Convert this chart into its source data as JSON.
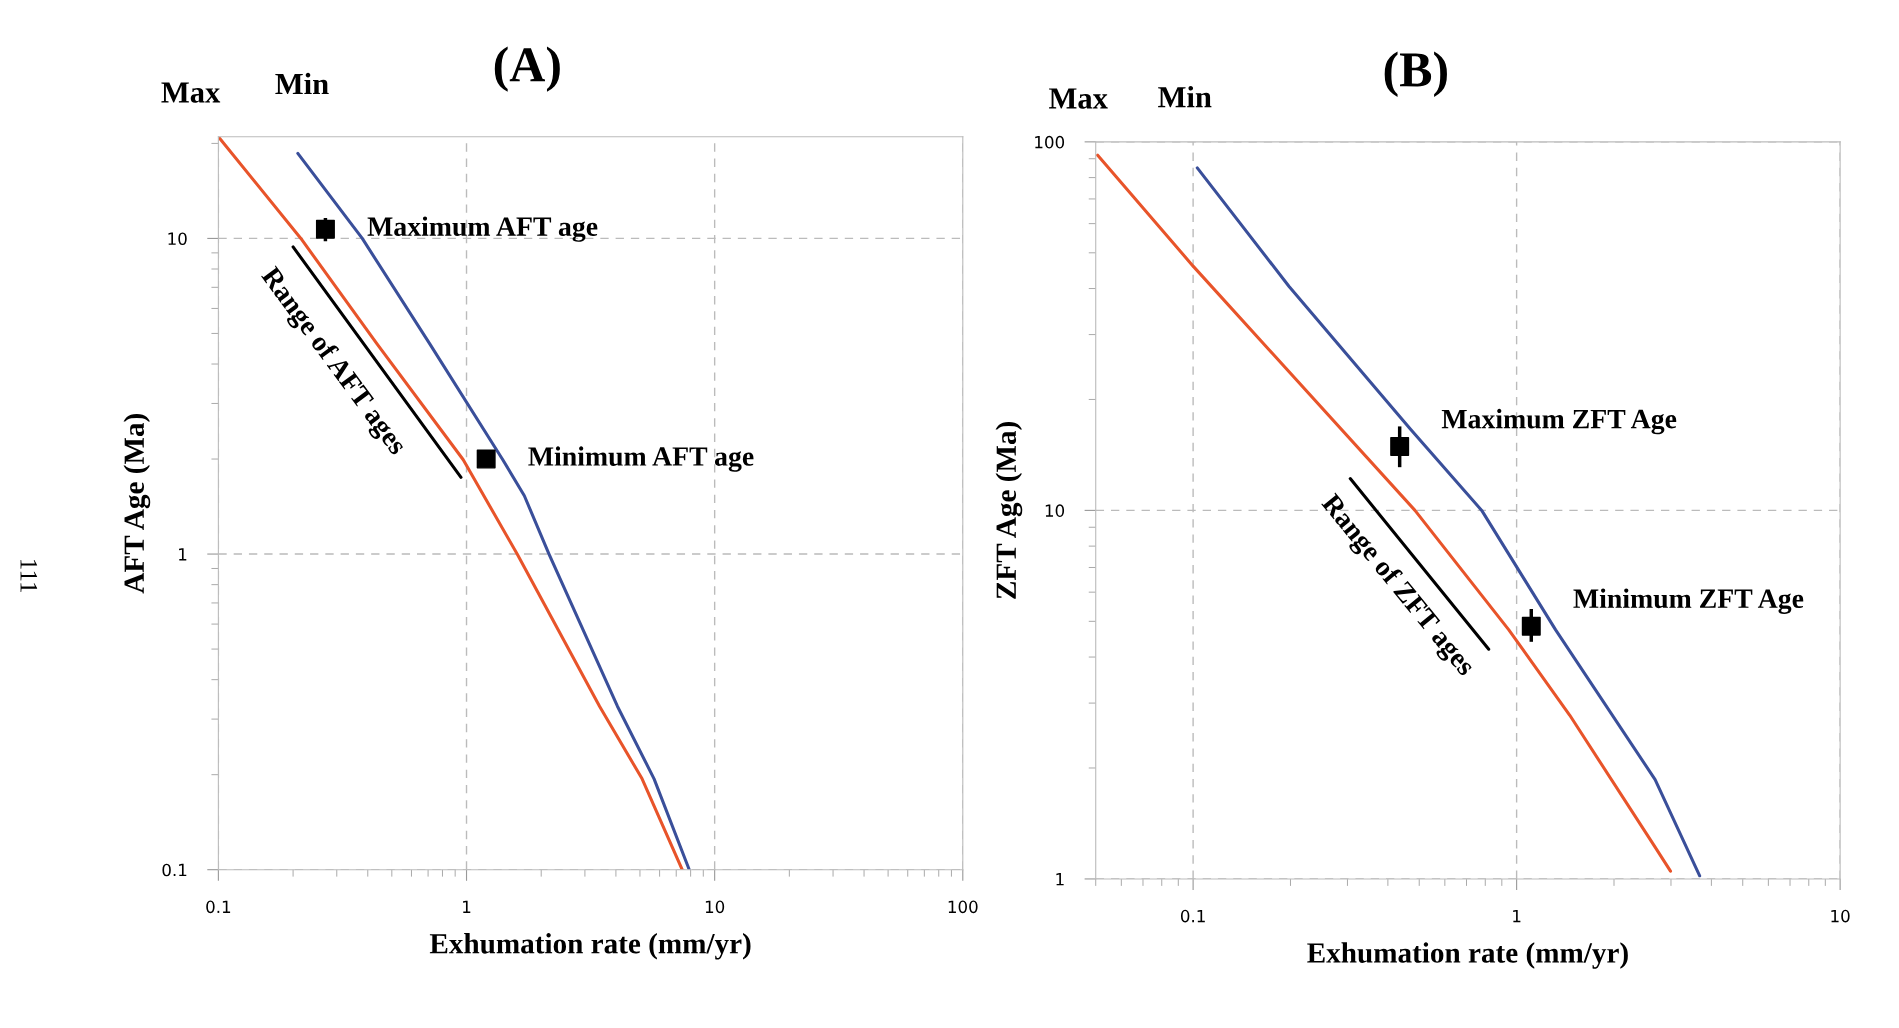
{
  "chart_data": [
    {
      "type": "line",
      "title": "(A)",
      "xlabel": "Exhumation rate (mm/yr)",
      "ylabel": "AFT Age (Ma)",
      "log": "xy",
      "grid": true,
      "xlim": [
        0.1,
        100
      ],
      "xticks": [
        0.1,
        1,
        10,
        100
      ],
      "ylim": [
        0.1,
        21
      ],
      "yticks": [
        0.1,
        1,
        10
      ],
      "series": [
        {
          "color": "#e8542a",
          "marker": "none",
          "line_style": "solid",
          "x": [
            0.1,
            0.215,
            0.435,
            0.97,
            1.6,
            3.44,
            5.1,
            7.4
          ],
          "values": [
            21,
            10,
            4.64,
            1.99,
            1,
            0.329,
            0.194,
            0.1
          ]
        },
        {
          "color": "#3a4f9a",
          "marker": "none",
          "line_style": "solid",
          "x": [
            0.209,
            0.38,
            0.71,
            1.4,
            1.71,
            2.15,
            4.06,
            5.7,
            7.9
          ],
          "values": [
            18.6,
            10,
            4.64,
            1.99,
            1.53,
            1,
            0.329,
            0.194,
            0.1
          ]
        },
        {
          "color": "#000000",
          "marker": "none",
          "line_style": "solid",
          "x": [
            0.2,
            0.95
          ],
          "values": [
            9.4,
            1.75
          ]
        },
        {
          "type": "scatter",
          "color": "#000000",
          "marker": "square",
          "x": [
            0.27,
            1.2
          ],
          "values": [
            10.7,
            2.0
          ],
          "errors": [
            [
              9.8,
              11.6
            ],
            null
          ]
        }
      ],
      "annotations": [
        {
          "text": "Max",
          "x": 0.1,
          "y": 21
        },
        {
          "text": "Min",
          "x": 0.209,
          "y": 18.6
        },
        {
          "text": "Maximum AFT age",
          "x": 0.27,
          "y": 10.7
        },
        {
          "text": "Minimum AFT age",
          "x": 1.2,
          "y": 2.0
        },
        {
          "text": "Range of AFT ages",
          "x": 0.436,
          "y": 4.06
        },
        "111"
      ]
    },
    {
      "type": "line",
      "title": "(B)",
      "xlabel": "Exhumation rate (mm/yr)",
      "ylabel": "ZFT Age (Ma)",
      "log": "xy",
      "grid": true,
      "xlim": [
        0.05,
        10
      ],
      "xticks": [
        0.1,
        1,
        10
      ],
      "ylim": [
        1,
        100
      ],
      "yticks": [
        1,
        10,
        100
      ],
      "series": [
        {
          "color": "#e8542a",
          "marker": "none",
          "line_style": "solid",
          "x": [
            0.0507,
            0.1,
            0.485,
            0.946,
            1.46,
            2.68,
            2.99
          ],
          "values": [
            92,
            46,
            10,
            4.74,
            2.78,
            1.22,
            1.05
          ]
        },
        {
          "color": "#3a4f9a",
          "marker": "none",
          "line_style": "solid",
          "x": [
            0.103,
            0.198,
            0.47,
            0.78,
            1.32,
            2.68,
            3.68
          ],
          "values": [
            85,
            40.5,
            16.6,
            10,
            4.74,
            1.86,
            1.02
          ]
        },
        {
          "color": "#000000",
          "marker": "none",
          "line_style": "solid",
          "x": [
            0.306,
            0.82
          ],
          "values": [
            12.2,
            4.2
          ]
        },
        {
          "type": "scatter",
          "color": "#000000",
          "marker": "square",
          "x": [
            0.435,
            1.11
          ],
          "values": [
            14.9,
            4.85
          ],
          "errors": [
            [
              13.1,
              16.9
            ],
            [
              4.4,
              5.4
            ]
          ]
        }
      ],
      "annotations": [
        {
          "text": "Max",
          "x": 0.0507,
          "y": 92
        },
        {
          "text": "Min",
          "x": 0.103,
          "y": 85
        },
        {
          "text": "Maximum ZFT Age",
          "x": 0.435,
          "y": 14.9
        },
        {
          "text": "Minimum ZFT Age",
          "x": 1.11,
          "y": 4.85
        },
        {
          "text": "Range of ZFT ages",
          "x": 0.5,
          "y": 7.16
        }
      ]
    }
  ]
}
